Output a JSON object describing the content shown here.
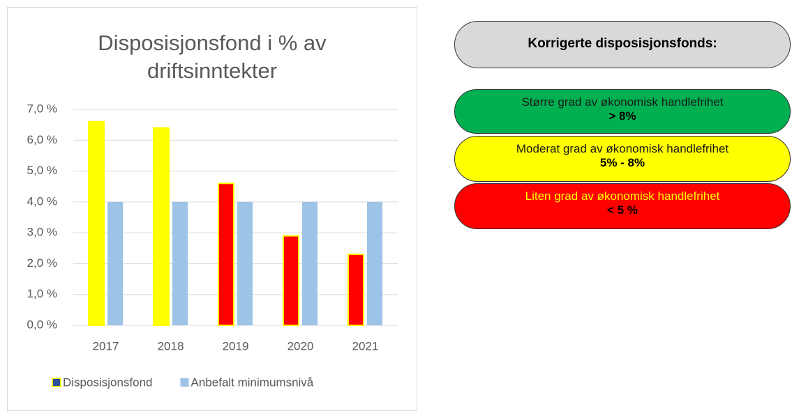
{
  "chart_data": {
    "type": "bar",
    "title": "Disposisjonsfond i % av driftsinntekter",
    "categories": [
      "2017",
      "2018",
      "2019",
      "2020",
      "2021"
    ],
    "series": [
      {
        "name": "Disposisjonsfond",
        "color": "#ffff00",
        "colors": [
          "#ffff00",
          "#ffff00",
          "#ff0000",
          "#ff0000",
          "#ff0000"
        ],
        "values": [
          6.6,
          6.4,
          4.6,
          2.9,
          2.3
        ]
      },
      {
        "name": "Anbefalt minimumsnivå",
        "color": "#9dc3e6",
        "values": [
          4.0,
          4.0,
          4.0,
          4.0,
          4.0
        ]
      }
    ],
    "ylim": [
      0,
      7
    ],
    "yticks": [
      {
        "value": 0,
        "label": "0,0 %"
      },
      {
        "value": 1,
        "label": "1,0 %"
      },
      {
        "value": 2,
        "label": "2,0 %"
      },
      {
        "value": 3,
        "label": "3,0 %"
      },
      {
        "value": 4,
        "label": "4,0 %"
      },
      {
        "value": 5,
        "label": "5,0 %"
      },
      {
        "value": 6,
        "label": "6,0 %"
      },
      {
        "value": 7,
        "label": "7,0 %"
      }
    ],
    "grid": true,
    "legend": "bottom"
  },
  "panel": {
    "heading": "Korrigerte disposisjonsfonds:",
    "levels": [
      {
        "title": "Større grad av økonomisk handlefrihet",
        "range": "> 8%",
        "color": "#00b050",
        "text_color": "#1a1a1a"
      },
      {
        "title": "Moderat grad av økonomisk handlefrihet",
        "range": "5% - 8%",
        "color": "#ffff00",
        "text_color": "#1a1a1a"
      },
      {
        "title": "Liten grad av økonomisk handlefrihet",
        "range": "< 5 %",
        "color": "#ff0000",
        "text_color": "#ffff00"
      }
    ]
  }
}
